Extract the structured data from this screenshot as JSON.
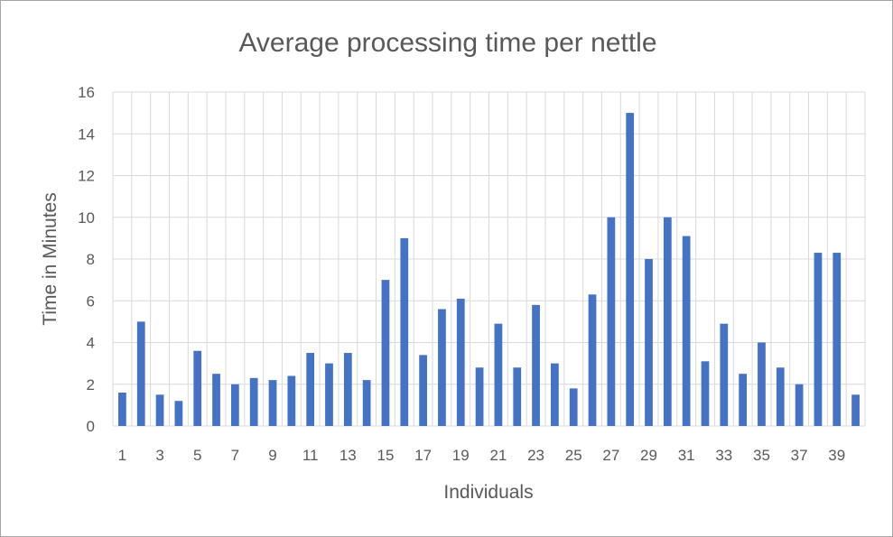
{
  "chart_data": {
    "type": "bar",
    "title": "Average processing time per nettle",
    "xlabel": "Individuals",
    "ylabel": "Time in Minutes",
    "ylim": [
      0,
      16
    ],
    "ytick_step": 2,
    "categories": [
      1,
      2,
      3,
      4,
      5,
      6,
      7,
      8,
      9,
      10,
      11,
      12,
      13,
      14,
      15,
      16,
      17,
      18,
      19,
      20,
      21,
      22,
      23,
      24,
      25,
      26,
      27,
      28,
      29,
      30,
      31,
      32,
      33,
      34,
      35,
      36,
      37,
      38,
      39,
      40
    ],
    "x_tick_labels_shown": [
      "1",
      "3",
      "5",
      "7",
      "9",
      "11",
      "13",
      "15",
      "17",
      "19",
      "21",
      "23",
      "25",
      "27",
      "29",
      "31",
      "33",
      "35",
      "37",
      "39"
    ],
    "values": [
      1.6,
      5,
      1.5,
      1.2,
      3.6,
      2.5,
      2,
      2.3,
      2.2,
      2.4,
      3.5,
      3,
      3.5,
      2.2,
      7,
      9,
      3.4,
      5.6,
      6.1,
      2.8,
      4.9,
      2.8,
      5.8,
      3,
      1.8,
      6.3,
      10,
      15,
      8,
      10,
      9.1,
      3.1,
      4.9,
      2.5,
      4,
      2.8,
      2,
      8.3,
      8.3,
      1.5
    ],
    "grid": true,
    "legend": "none",
    "colors": {
      "bar": "#4472c4",
      "grid": "#d9d9d9",
      "text": "#595959"
    }
  }
}
